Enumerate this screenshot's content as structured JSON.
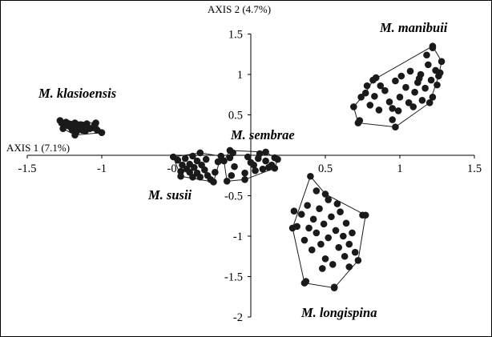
{
  "chart_data": {
    "type": "scatter",
    "title": "",
    "xlabel": "AXIS 1 (7.1%)",
    "ylabel": "AXIS 2 (4.7%)",
    "xlim": [
      -1.5,
      1.5
    ],
    "ylim": [
      -2,
      1.5
    ],
    "x_ticks": [
      "-1.5",
      "-1",
      "-0.5",
      "0.5",
      "1",
      "1.5"
    ],
    "x_tick_values": [
      -1.5,
      -1,
      -0.5,
      0.5,
      1,
      1.5
    ],
    "y_ticks": [
      "1.5",
      "1",
      "0.5",
      "-0.5",
      "-1",
      "-1.5",
      "-2"
    ],
    "y_tick_values": [
      1.5,
      1,
      0.5,
      -0.5,
      -1,
      -1.5,
      -2
    ],
    "grid": false,
    "legend": "none",
    "marker_color": "#1a1a1a",
    "series": [
      {
        "name": "M. klasioensis",
        "hull": [
          [
            -1.28,
            0.43
          ],
          [
            -1.04,
            0.4
          ],
          [
            -1.0,
            0.28
          ],
          [
            -1.18,
            0.25
          ],
          [
            -1.26,
            0.33
          ]
        ],
        "points": [
          [
            -1.27,
            0.4
          ],
          [
            -1.24,
            0.41
          ],
          [
            -1.22,
            0.39
          ],
          [
            -1.2,
            0.38
          ],
          [
            -1.18,
            0.4
          ],
          [
            -1.16,
            0.37
          ],
          [
            -1.14,
            0.38
          ],
          [
            -1.12,
            0.35
          ],
          [
            -1.1,
            0.36
          ],
          [
            -1.08,
            0.33
          ],
          [
            -1.06,
            0.34
          ],
          [
            -1.03,
            0.31
          ],
          [
            -1.22,
            0.36
          ],
          [
            -1.19,
            0.34
          ],
          [
            -1.16,
            0.33
          ],
          [
            -1.13,
            0.31
          ],
          [
            -1.11,
            0.3
          ],
          [
            -1.17,
            0.29
          ],
          [
            -1.25,
            0.37
          ],
          [
            -1.2,
            0.32
          ],
          [
            -1.15,
            0.35
          ],
          [
            -1.1,
            0.39
          ],
          [
            -1.05,
            0.37
          ]
        ]
      },
      {
        "name": "M. susii",
        "hull": [
          [
            -0.52,
            -0.02
          ],
          [
            -0.34,
            0.03
          ],
          [
            -0.2,
            -0.01
          ],
          [
            -0.25,
            -0.33
          ],
          [
            -0.47,
            -0.26
          ]
        ],
        "points": [
          [
            -0.49,
            -0.06
          ],
          [
            -0.44,
            -0.04
          ],
          [
            -0.39,
            -0.01
          ],
          [
            -0.36,
            -0.07
          ],
          [
            -0.41,
            -0.11
          ],
          [
            -0.46,
            -0.12
          ],
          [
            -0.43,
            -0.17
          ],
          [
            -0.38,
            -0.15
          ],
          [
            -0.33,
            -0.12
          ],
          [
            -0.31,
            -0.18
          ],
          [
            -0.36,
            -0.22
          ],
          [
            -0.41,
            -0.21
          ],
          [
            -0.34,
            -0.27
          ],
          [
            -0.29,
            -0.25
          ],
          [
            -0.24,
            -0.21
          ],
          [
            -0.27,
            -0.3
          ],
          [
            -0.22,
            -0.08
          ],
          [
            -0.47,
            -0.2
          ],
          [
            -0.39,
            -0.27
          ],
          [
            -0.3,
            -0.05
          ]
        ]
      },
      {
        "name": "M. sembrae",
        "hull": [
          [
            -0.14,
            0.06
          ],
          [
            0.1,
            0.04
          ],
          [
            0.18,
            -0.05
          ],
          [
            0.16,
            -0.16
          ],
          [
            -0.04,
            -0.3
          ],
          [
            -0.16,
            -0.32
          ],
          [
            -0.18,
            -0.07
          ]
        ],
        "points": [
          [
            -0.12,
            0.03
          ],
          [
            -0.14,
            -0.03
          ],
          [
            -0.11,
            -0.14
          ],
          [
            -0.13,
            -0.25
          ],
          [
            -0.04,
            -0.22
          ],
          [
            0.02,
            -0.12
          ],
          [
            0.05,
            -0.04
          ],
          [
            0.03,
            -0.19
          ],
          [
            0.08,
            -0.17
          ],
          [
            0.1,
            -0.07
          ],
          [
            0.14,
            -0.12
          ],
          [
            0.16,
            -0.03
          ],
          [
            0.0,
            -0.09
          ],
          [
            0.06,
            0.02
          ],
          [
            -0.02,
            -0.02
          ],
          [
            0.12,
            -0.15
          ]
        ]
      },
      {
        "name": "M. manibuii",
        "hull": [
          [
            0.77,
            0.77
          ],
          [
            0.82,
            0.93
          ],
          [
            1.22,
            1.35
          ],
          [
            1.28,
            1.16
          ],
          [
            1.26,
            0.98
          ],
          [
            1.2,
            0.65
          ],
          [
            0.97,
            0.35
          ],
          [
            0.72,
            0.4
          ],
          [
            0.69,
            0.6
          ]
        ],
        "points": [
          [
            0.74,
            0.72
          ],
          [
            0.78,
            0.86
          ],
          [
            0.8,
            0.62
          ],
          [
            0.83,
            0.73
          ],
          [
            0.87,
            0.86
          ],
          [
            0.86,
            0.56
          ],
          [
            0.9,
            0.8
          ],
          [
            0.93,
            0.66
          ],
          [
            0.95,
            0.58
          ],
          [
            0.97,
            0.92
          ],
          [
            1.0,
            0.72
          ],
          [
            1.01,
            0.98
          ],
          [
            1.04,
            0.84
          ],
          [
            1.06,
            0.65
          ],
          [
            1.07,
            1.04
          ],
          [
            1.1,
            0.78
          ],
          [
            1.12,
            0.9
          ],
          [
            1.14,
            1.0
          ],
          [
            1.15,
            0.68
          ],
          [
            1.17,
            0.83
          ],
          [
            1.19,
            1.12
          ],
          [
            1.21,
            0.93
          ],
          [
            1.22,
            0.72
          ],
          [
            1.24,
            1.05
          ],
          [
            1.25,
            0.87
          ],
          [
            1.18,
            1.24
          ],
          [
            1.22,
            1.33
          ],
          [
            0.95,
            0.44
          ],
          [
            0.73,
            0.43
          ],
          [
            0.84,
            0.96
          ],
          [
            0.99,
            0.55
          ],
          [
            1.09,
            0.6
          ],
          [
            1.27,
            1.02
          ],
          [
            1.13,
            0.95
          ]
        ]
      },
      {
        "name": "M. longispina",
        "hull": [
          [
            0.4,
            -0.26
          ],
          [
            0.5,
            -0.48
          ],
          [
            0.77,
            -0.74
          ],
          [
            0.72,
            -1.3
          ],
          [
            0.56,
            -1.64
          ],
          [
            0.36,
            -1.58
          ],
          [
            0.28,
            -0.9
          ]
        ],
        "points": [
          [
            0.29,
            -0.69
          ],
          [
            0.31,
            -0.88
          ],
          [
            0.34,
            -0.73
          ],
          [
            0.36,
            -1.05
          ],
          [
            0.38,
            -0.62
          ],
          [
            0.39,
            -0.9
          ],
          [
            0.41,
            -1.17
          ],
          [
            0.42,
            -0.79
          ],
          [
            0.44,
            -0.96
          ],
          [
            0.46,
            -0.66
          ],
          [
            0.47,
            -1.1
          ],
          [
            0.49,
            -0.85
          ],
          [
            0.5,
            -1.28
          ],
          [
            0.52,
            -0.55
          ],
          [
            0.52,
            -1.02
          ],
          [
            0.54,
            -0.76
          ],
          [
            0.55,
            -1.35
          ],
          [
            0.57,
            -0.93
          ],
          [
            0.59,
            -1.14
          ],
          [
            0.6,
            -0.7
          ],
          [
            0.62,
            -1.0
          ],
          [
            0.63,
            -1.25
          ],
          [
            0.64,
            -0.84
          ],
          [
            0.66,
            -1.1
          ],
          [
            0.68,
            -0.96
          ],
          [
            0.7,
            -1.2
          ],
          [
            0.75,
            -0.74
          ],
          [
            0.48,
            -1.4
          ],
          [
            0.56,
            -1.63
          ],
          [
            0.37,
            -1.56
          ],
          [
            0.44,
            -0.44
          ],
          [
            0.58,
            -0.6
          ],
          [
            0.66,
            -1.38
          ]
        ]
      }
    ]
  }
}
